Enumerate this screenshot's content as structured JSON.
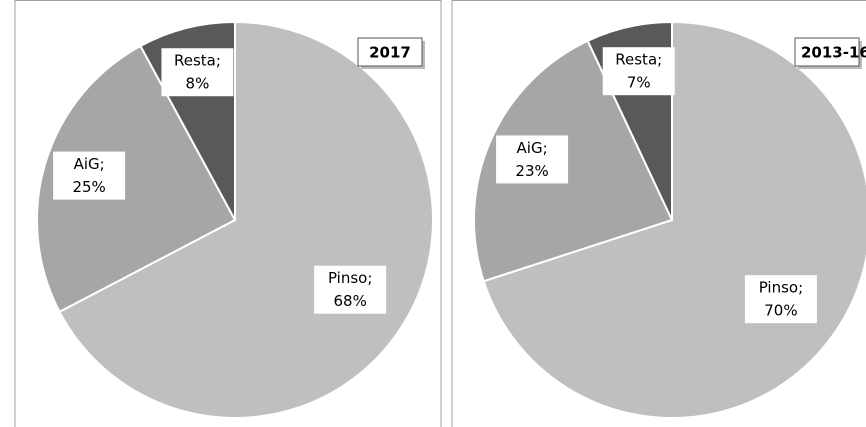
{
  "chart_data": [
    {
      "type": "pie",
      "title": "2017",
      "categories": [
        "Pinso;",
        "AiG;",
        "Resta;"
      ],
      "values": [
        68,
        25,
        8
      ],
      "value_labels": [
        "68%",
        "25%",
        "8%"
      ],
      "colors": [
        "#bfbfbf",
        "#a6a6a6",
        "#595959"
      ]
    },
    {
      "type": "pie",
      "title": "2013-16",
      "categories": [
        "Pinso;",
        "AiG;",
        "Resta;"
      ],
      "values": [
        70,
        23,
        7
      ],
      "value_labels": [
        "70%",
        "23%",
        "7%"
      ],
      "colors": [
        "#bfbfbf",
        "#a6a6a6",
        "#595959"
      ]
    }
  ]
}
